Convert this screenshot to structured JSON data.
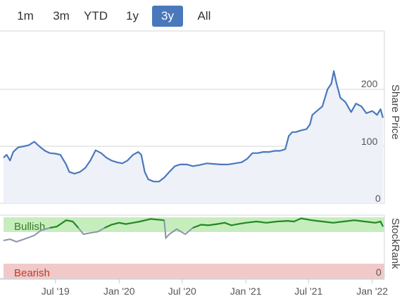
{
  "range_selector": {
    "buttons": [
      {
        "label": "1m",
        "active": false
      },
      {
        "label": "3m",
        "active": false
      },
      {
        "label": "YTD",
        "active": false
      },
      {
        "label": "1y",
        "active": false
      },
      {
        "label": "3y",
        "active": true
      },
      {
        "label": "All",
        "active": false
      }
    ]
  },
  "colors": {
    "price_line": "#4a78bc",
    "price_fill": "#eef1f8",
    "stockrank_green": "#248a24",
    "stockrank_grey": "#8a93a8",
    "bullish_band": "#c6eebd",
    "bearish_band": "#f1c9c9",
    "grid": "#d6d6d6",
    "active_button": "#4a78bc"
  },
  "chart_data": [
    {
      "type": "line",
      "title": "",
      "ylabel": "Share Price",
      "yticks": [
        0,
        100,
        200
      ],
      "ylim": [
        0,
        240
      ],
      "xlabel": "",
      "x_ticks": [
        "Jul '19",
        "Jan '20",
        "Jul '20",
        "Jan '21",
        "Jul '21",
        "Jan '22"
      ],
      "x_range": [
        "2019-02",
        "2022-02"
      ],
      "grid": true,
      "series": [
        {
          "points": [
            [
              "2019-02-01",
              80
            ],
            [
              "2019-02-10",
              85
            ],
            [
              "2019-02-20",
              75
            ],
            [
              "2019-03-01",
              90
            ],
            [
              "2019-03-15",
              98
            ],
            [
              "2019-04-01",
              100
            ],
            [
              "2019-04-15",
              102
            ],
            [
              "2019-05-01",
              108
            ],
            [
              "2019-05-15",
              100
            ],
            [
              "2019-06-01",
              92
            ],
            [
              "2019-06-15",
              88
            ],
            [
              "2019-07-01",
              87
            ],
            [
              "2019-07-15",
              85
            ],
            [
              "2019-08-01",
              68
            ],
            [
              "2019-08-10",
              55
            ],
            [
              "2019-08-25",
              52
            ],
            [
              "2019-09-10",
              55
            ],
            [
              "2019-09-25",
              62
            ],
            [
              "2019-10-10",
              75
            ],
            [
              "2019-10-25",
              93
            ],
            [
              "2019-11-10",
              88
            ],
            [
              "2019-11-25",
              80
            ],
            [
              "2019-12-10",
              75
            ],
            [
              "2019-12-25",
              72
            ],
            [
              "2020-01-10",
              70
            ],
            [
              "2020-01-25",
              75
            ],
            [
              "2020-02-10",
              85
            ],
            [
              "2020-02-25",
              90
            ],
            [
              "2020-03-05",
              85
            ],
            [
              "2020-03-15",
              55
            ],
            [
              "2020-03-25",
              42
            ],
            [
              "2020-04-10",
              38
            ],
            [
              "2020-04-25",
              38
            ],
            [
              "2020-05-10",
              45
            ],
            [
              "2020-05-25",
              55
            ],
            [
              "2020-06-10",
              65
            ],
            [
              "2020-06-25",
              68
            ],
            [
              "2020-07-15",
              68
            ],
            [
              "2020-08-01",
              65
            ],
            [
              "2020-08-20",
              67
            ],
            [
              "2020-09-10",
              70
            ],
            [
              "2020-10-01",
              69
            ],
            [
              "2020-10-20",
              68
            ],
            [
              "2020-11-10",
              68
            ],
            [
              "2020-12-01",
              70
            ],
            [
              "2020-12-20",
              72
            ],
            [
              "2021-01-05",
              78
            ],
            [
              "2021-01-20",
              88
            ],
            [
              "2021-02-05",
              88
            ],
            [
              "2021-02-20",
              90
            ],
            [
              "2021-03-10",
              90
            ],
            [
              "2021-03-25",
              92
            ],
            [
              "2021-04-10",
              92
            ],
            [
              "2021-04-25",
              95
            ],
            [
              "2021-05-05",
              118
            ],
            [
              "2021-05-15",
              125
            ],
            [
              "2021-05-25",
              125
            ],
            [
              "2021-06-10",
              128
            ],
            [
              "2021-06-25",
              130
            ],
            [
              "2021-07-05",
              138
            ],
            [
              "2021-07-12",
              155
            ],
            [
              "2021-07-25",
              162
            ],
            [
              "2021-08-10",
              170
            ],
            [
              "2021-08-25",
              200
            ],
            [
              "2021-09-05",
              210
            ],
            [
              "2021-09-12",
              232
            ],
            [
              "2021-09-20",
              210
            ],
            [
              "2021-10-01",
              185
            ],
            [
              "2021-10-15",
              178
            ],
            [
              "2021-11-01",
              160
            ],
            [
              "2021-11-15",
              175
            ],
            [
              "2021-12-01",
              170
            ],
            [
              "2021-12-15",
              158
            ],
            [
              "2022-01-01",
              162
            ],
            [
              "2022-01-15",
              155
            ],
            [
              "2022-01-25",
              165
            ],
            [
              "2022-02-01",
              150
            ]
          ]
        }
      ]
    },
    {
      "type": "line",
      "title": "",
      "ylabel": "StockRank",
      "band_labels": [
        "Bullish",
        "Bearish"
      ],
      "yticks": [
        0
      ],
      "ylim": [
        0,
        100
      ],
      "series": [
        {
          "points": [
            [
              "2019-02-01",
              60
            ],
            [
              "2019-02-20",
              62
            ],
            [
              "2019-03-10",
              58
            ],
            [
              "2019-04-01",
              62
            ],
            [
              "2019-05-01",
              68
            ],
            [
              "2019-05-20",
              76
            ],
            [
              "2019-06-15",
              80
            ],
            [
              "2019-07-05",
              82
            ],
            [
              "2019-08-01",
              92
            ],
            [
              "2019-08-20",
              90
            ],
            [
              "2019-09-05",
              80
            ],
            [
              "2019-09-20",
              70
            ],
            [
              "2019-10-10",
              72
            ],
            [
              "2019-11-01",
              74
            ],
            [
              "2019-11-20",
              80
            ],
            [
              "2019-12-10",
              85
            ],
            [
              "2020-01-01",
              88
            ],
            [
              "2020-01-20",
              86
            ],
            [
              "2020-02-10",
              88
            ],
            [
              "2020-03-01",
              90
            ],
            [
              "2020-04-01",
              94
            ],
            [
              "2020-04-20",
              93
            ],
            [
              "2020-05-10",
              92
            ],
            [
              "2020-05-15",
              64
            ],
            [
              "2020-05-25",
              70
            ],
            [
              "2020-06-15",
              78
            ],
            [
              "2020-07-10",
              70
            ],
            [
              "2020-08-01",
              80
            ],
            [
              "2020-08-25",
              85
            ],
            [
              "2020-09-15",
              84
            ],
            [
              "2020-10-10",
              86
            ],
            [
              "2020-11-01",
              88
            ],
            [
              "2020-11-20",
              84
            ],
            [
              "2020-12-10",
              86
            ],
            [
              "2021-01-01",
              88
            ],
            [
              "2021-02-01",
              90
            ],
            [
              "2021-03-01",
              88
            ],
            [
              "2021-04-01",
              90
            ],
            [
              "2021-05-01",
              91
            ],
            [
              "2021-05-20",
              90
            ],
            [
              "2021-06-10",
              95
            ],
            [
              "2021-07-10",
              92
            ],
            [
              "2021-08-10",
              90
            ],
            [
              "2021-09-10",
              88
            ],
            [
              "2021-10-10",
              90
            ],
            [
              "2021-11-10",
              92
            ],
            [
              "2021-12-10",
              90
            ],
            [
              "2022-01-10",
              88
            ],
            [
              "2022-01-25",
              90
            ],
            [
              "2022-02-01",
              82
            ]
          ]
        }
      ]
    }
  ]
}
